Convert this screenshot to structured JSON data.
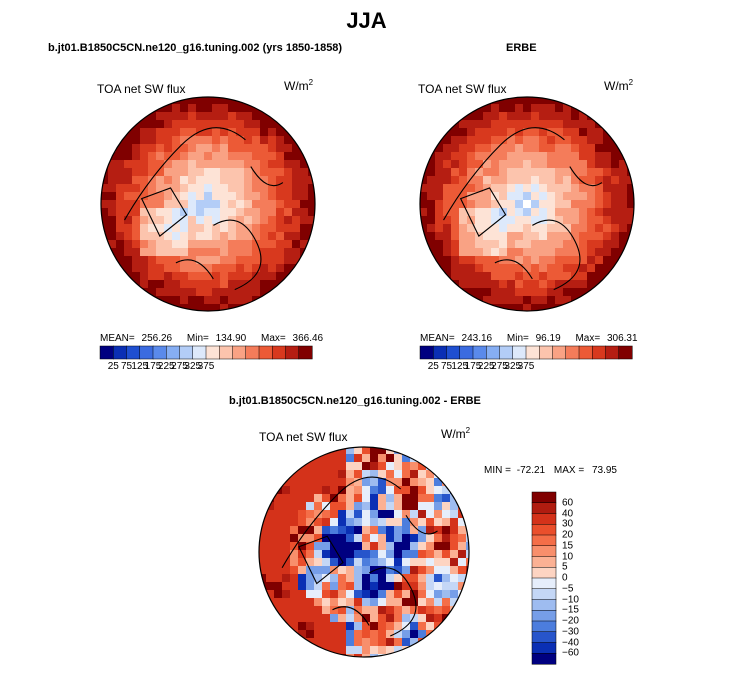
{
  "main_title": "JJA",
  "panels": [
    {
      "title": "b.jt01.B1850C5CN.ne120_g16.tuning.002 (yrs 1850-1858)",
      "variable": "TOA net SW flux",
      "units": "W/m",
      "units_sup": "2",
      "mean_label": "MEAN=",
      "mean": "256.26",
      "min_label": "Min=",
      "min": "134.90",
      "max_label": "Max=",
      "max": "366.46"
    },
    {
      "title": "ERBE",
      "variable": "TOA net SW flux",
      "units": "W/m",
      "units_sup": "2",
      "mean_label": "MEAN=",
      "mean": "243.16",
      "min_label": "Min=",
      "min": "96.19",
      "max_label": "Max=",
      "max": "306.31"
    },
    {
      "title": "b.jt01.B1850C5CN.ne120_g16.tuning.002 - ERBE",
      "variable": "TOA net SW flux",
      "units": "W/m",
      "units_sup": "2",
      "min_label": "MIN =",
      "min": "-72.21",
      "max_label": "MAX =",
      "max": "73.95"
    }
  ],
  "chart_data": [
    {
      "type": "heatmap",
      "projection": "north polar stereographic",
      "title": "b.jt01.B1850C5CN.ne120_g16.tuning.002 (yrs 1850-1858)",
      "variable": "TOA net SW flux",
      "units": "W/m2",
      "stats": {
        "mean": 256.26,
        "min": 134.9,
        "max": 366.46
      },
      "colorbar": {
        "levels": [
          25,
          75,
          125,
          175,
          225,
          275,
          325,
          375
        ],
        "tick_labels": [
          "25",
          "75",
          "125",
          "175",
          "225",
          "275",
          "325",
          "375"
        ],
        "colors": [
          "#000080",
          "#0a2fb4",
          "#1f4fd0",
          "#3b6be0",
          "#5a8aeb",
          "#86aef3",
          "#b3cdf7",
          "#dde9fb",
          "#fde3d6",
          "#fcc4ad",
          "#f9a284",
          "#f47c5a",
          "#ec5a36",
          "#d8391e",
          "#b51e12",
          "#800000"
        ]
      }
    },
    {
      "type": "heatmap",
      "projection": "north polar stereographic",
      "title": "ERBE",
      "variable": "TOA net SW flux",
      "units": "W/m2",
      "stats": {
        "mean": 243.16,
        "min": 96.19,
        "max": 306.31
      },
      "colorbar": {
        "levels": [
          25,
          75,
          125,
          175,
          225,
          275,
          325,
          375
        ],
        "tick_labels": [
          "25",
          "75",
          "125",
          "175",
          "225",
          "275",
          "325",
          "375"
        ],
        "colors": [
          "#000080",
          "#0a2fb4",
          "#1f4fd0",
          "#3b6be0",
          "#5a8aeb",
          "#86aef3",
          "#b3cdf7",
          "#dde9fb",
          "#fde3d6",
          "#fcc4ad",
          "#f9a284",
          "#f47c5a",
          "#ec5a36",
          "#d8391e",
          "#b51e12",
          "#800000"
        ]
      }
    },
    {
      "type": "heatmap",
      "projection": "north polar stereographic",
      "title": "b.jt01.B1850C5CN.ne120_g16.tuning.002 - ERBE",
      "variable": "TOA net SW flux",
      "units": "W/m2",
      "stats": {
        "min": -72.21,
        "max": 73.95
      },
      "colorbar": {
        "levels": [
          60,
          40,
          30,
          20,
          15,
          10,
          5,
          0,
          -5,
          -10,
          -15,
          -20,
          -30,
          -40,
          -60
        ],
        "tick_labels": [
          "60",
          "40",
          "30",
          "20",
          "15",
          "10",
          "5",
          "0",
          "−5",
          "−10",
          "−15",
          "−20",
          "−30",
          "−40",
          "−60"
        ],
        "colors": [
          "#800000",
          "#b01c10",
          "#d4321a",
          "#ea4f2c",
          "#f46e48",
          "#f88f6c",
          "#fbb194",
          "#fdd4c2",
          "#e6eefb",
          "#c4d7f6",
          "#9ebcf0",
          "#769ee8",
          "#4c7ddd",
          "#2755cb",
          "#0a2fb4",
          "#000080"
        ]
      }
    }
  ]
}
